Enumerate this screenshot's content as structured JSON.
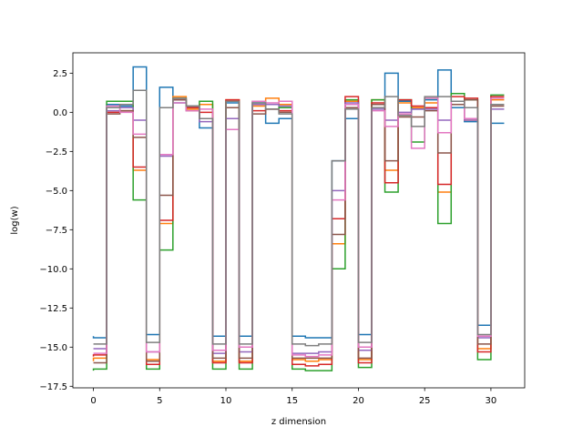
{
  "chart_data": {
    "type": "line",
    "title": "",
    "xlabel": "z dimension",
    "ylabel": "log(w)",
    "xlim": [
      -1.55,
      32.55
    ],
    "ylim": [
      -17.6,
      3.8
    ],
    "grid": false,
    "legend": "none",
    "step": "pre",
    "x": [
      0,
      1,
      2,
      3,
      4,
      5,
      6,
      7,
      8,
      9,
      10,
      11,
      12,
      13,
      14,
      15,
      16,
      17,
      18,
      19,
      20,
      21,
      22,
      23,
      24,
      25,
      26,
      27,
      28,
      29,
      30,
      31
    ],
    "xticks": [
      0,
      5,
      10,
      15,
      20,
      25,
      30
    ],
    "xtick_labels": [
      "0",
      "5",
      "10",
      "15",
      "20",
      "25",
      "30"
    ],
    "yticks": [
      2.5,
      0.0,
      -2.5,
      -5.0,
      -7.5,
      -10.0,
      -12.5,
      -15.0,
      -17.5
    ],
    "ytick_labels": [
      "2.5",
      "0.0",
      "−2.5",
      "−5.0",
      "−7.5",
      "−10.0",
      "−12.5",
      "−15.0",
      "−17.5"
    ],
    "series": [
      {
        "color": "#1f77b4",
        "values": [
          -14.3,
          -14.4,
          0.5,
          0.4,
          2.9,
          -14.2,
          1.6,
          0.6,
          0.3,
          -1.0,
          -14.3,
          0.6,
          -14.3,
          0.6,
          -0.7,
          -0.4,
          -14.3,
          -14.4,
          -14.4,
          -3.1,
          -0.4,
          -14.2,
          0.5,
          2.5,
          0.7,
          0.2,
          0.8,
          2.7,
          0.3,
          -0.6,
          -13.6,
          -0.7
        ]
      },
      {
        "color": "#ff7f0e",
        "values": [
          -15.9,
          -15.7,
          0.3,
          0.5,
          -3.7,
          -15.8,
          -7.1,
          1.0,
          0.2,
          0.5,
          -15.9,
          0.8,
          -15.9,
          0.4,
          0.9,
          0.5,
          -15.8,
          -15.9,
          -15.8,
          -8.4,
          0.7,
          -15.8,
          0.8,
          -3.7,
          0.6,
          0.3,
          0.6,
          -5.1,
          0.7,
          -0.5,
          -15.1,
          0.8
        ]
      },
      {
        "color": "#2ca02c",
        "values": [
          -16.5,
          -16.4,
          0.7,
          0.7,
          -5.6,
          -16.4,
          -8.8,
          0.9,
          0.4,
          0.7,
          -16.4,
          0.7,
          -16.4,
          0.7,
          0.5,
          0.3,
          -16.4,
          -16.5,
          -16.5,
          -10.0,
          0.8,
          -16.3,
          0.8,
          -5.1,
          0.8,
          -1.9,
          0.9,
          -7.1,
          1.2,
          0.8,
          -15.8,
          1.1
        ]
      },
      {
        "color": "#d62728",
        "values": [
          -15.6,
          -15.5,
          0.0,
          0.1,
          -3.5,
          -16.1,
          -6.9,
          0.8,
          0.3,
          0.0,
          -16.0,
          0.8,
          -16.0,
          0.1,
          0.2,
          0.1,
          -16.1,
          -16.2,
          -16.1,
          -6.8,
          1.0,
          -16.0,
          0.6,
          -4.5,
          0.8,
          0.4,
          0.3,
          -4.6,
          1.0,
          0.9,
          -15.3,
          1.0
        ]
      },
      {
        "color": "#9467bd",
        "values": [
          -15.1,
          -15.1,
          0.1,
          0.3,
          -0.5,
          -15.3,
          -2.8,
          0.8,
          0.4,
          -0.6,
          -15.4,
          -0.4,
          -15.3,
          0.5,
          0.5,
          0.4,
          -15.4,
          -15.4,
          -15.3,
          -5.0,
          0.6,
          -15.2,
          0.2,
          -0.5,
          0.0,
          0.2,
          0.2,
          -0.5,
          0.5,
          -0.5,
          -14.4,
          0.2
        ]
      },
      {
        "color": "#8c564b",
        "values": [
          -16.0,
          -16.0,
          -0.1,
          0.1,
          -1.6,
          -15.9,
          -5.3,
          0.8,
          0.1,
          -0.4,
          -15.7,
          0.3,
          -15.7,
          -0.1,
          0.2,
          0.0,
          -15.7,
          -15.7,
          -15.7,
          -7.8,
          0.3,
          -15.7,
          0.5,
          -3.1,
          -0.3,
          -0.3,
          0.1,
          -2.6,
          0.5,
          0.8,
          -14.8,
          0.4
        ]
      },
      {
        "color": "#e377c2",
        "values": [
          -15.4,
          -15.4,
          0.4,
          0.0,
          -1.4,
          -15.3,
          -2.7,
          0.6,
          0.1,
          0.2,
          -15.2,
          -1.1,
          -15.0,
          0.7,
          0.6,
          0.7,
          -15.5,
          -15.6,
          -15.5,
          -5.6,
          0.5,
          -15.0,
          0.1,
          -0.9,
          -0.1,
          -2.3,
          0.9,
          -1.3,
          0.7,
          -0.4,
          -14.3,
          0.9
        ]
      },
      {
        "color": "#7f7f7f",
        "values": [
          -14.8,
          -14.8,
          0.3,
          0.5,
          1.4,
          -14.7,
          0.3,
          0.9,
          0.4,
          -0.4,
          -14.8,
          0.7,
          -14.8,
          0.6,
          0.2,
          -0.1,
          -14.8,
          -14.9,
          -14.8,
          -3.1,
          0.2,
          -14.7,
          0.3,
          1.0,
          -0.2,
          -0.9,
          1.0,
          1.0,
          0.7,
          0.3,
          -14.2,
          0.5
        ]
      }
    ]
  }
}
